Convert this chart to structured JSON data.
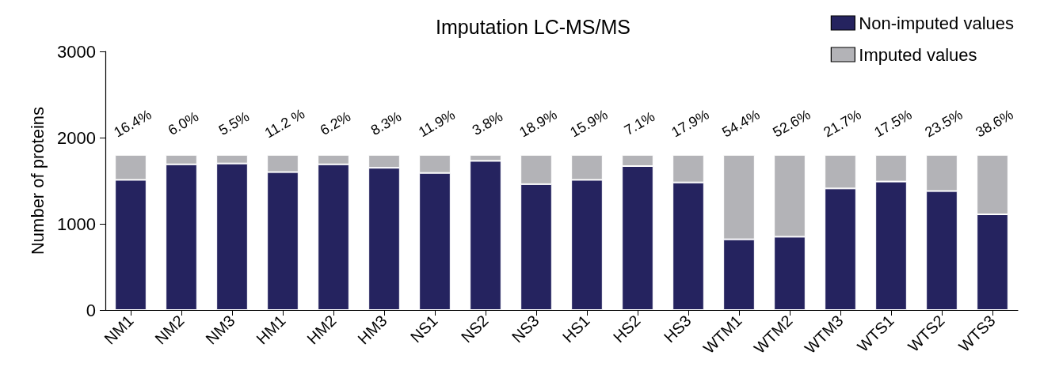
{
  "chart_data": {
    "type": "bar",
    "title": "Imputation LC-MS/MS",
    "ylabel": "Number of proteins",
    "stacked": true,
    "legend": "top right",
    "grid": false,
    "categories": [
      "NM1",
      "NM2",
      "NM3",
      "HM1",
      "HM2",
      "HM3",
      "NS1",
      "NS2",
      "NS3",
      "HS1",
      "HS2",
      "HS3",
      "WTM1",
      "WTM2",
      "WTM3",
      "WTS1",
      "WTS2",
      "WTS3"
    ],
    "ylim": [
      0,
      3000
    ],
    "yticks": [
      0,
      1000,
      2000,
      3000
    ],
    "series": [
      {
        "name": "Non-imputed values",
        "color": "#25235f",
        "values": [
          1510,
          1690,
          1700,
          1600,
          1690,
          1650,
          1590,
          1730,
          1460,
          1510,
          1670,
          1480,
          820,
          850,
          1410,
          1490,
          1380,
          1110
        ]
      },
      {
        "name": "Imputed values",
        "color": "#b3b3b7",
        "values": [
          290,
          110,
          100,
          200,
          110,
          150,
          210,
          70,
          340,
          290,
          130,
          320,
          980,
          950,
          390,
          310,
          420,
          690
        ]
      }
    ],
    "annotations": [
      {
        "text": "16.4%",
        "x": "NM1",
        "y": 1800
      },
      {
        "text": "6.0%",
        "x": "NM2",
        "y": 1800
      },
      {
        "text": "5.5%",
        "x": "NM3",
        "y": 1800
      },
      {
        "text": "11.2 %",
        "x": "HM1",
        "y": 1800
      },
      {
        "text": "6.2%",
        "x": "HM2",
        "y": 1800
      },
      {
        "text": "8.3%",
        "x": "HM3",
        "y": 1800
      },
      {
        "text": "11.9%",
        "x": "NS1",
        "y": 1800
      },
      {
        "text": "3.8%",
        "x": "NS2",
        "y": 1800
      },
      {
        "text": "18.9%",
        "x": "NS3",
        "y": 1800
      },
      {
        "text": "15.9%",
        "x": "HS1",
        "y": 1800
      },
      {
        "text": "7.1%",
        "x": "HS2",
        "y": 1800
      },
      {
        "text": "17.9%",
        "x": "HS3",
        "y": 1800
      },
      {
        "text": "54.4%",
        "x": "WTM1",
        "y": 1800
      },
      {
        "text": "52.6%",
        "x": "WTM2",
        "y": 1800
      },
      {
        "text": "21.7%",
        "x": "WTM3",
        "y": 1800
      },
      {
        "text": "17.5%",
        "x": "WTS1",
        "y": 1800
      },
      {
        "text": "23.5%",
        "x": "WTS2",
        "y": 1800
      },
      {
        "text": "38.6%",
        "x": "WTS3",
        "y": 1800
      }
    ]
  }
}
